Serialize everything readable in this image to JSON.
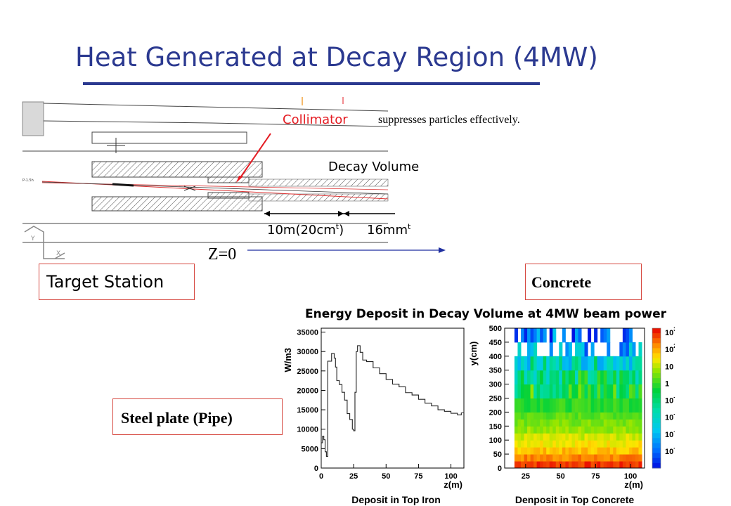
{
  "slide": {
    "title": "Heat Generated at Decay Region (4MW)"
  },
  "diagram": {
    "collimator_label": "Collimator",
    "collimator_note": "suppresses particles effectively.",
    "decay_volume_label": "Decay Volume",
    "dim_left": "10m(20cm",
    "dim_left_sup": "t",
    "dim_left_close": ")",
    "dim_right": "16mm",
    "dim_right_sup": "t",
    "z_label": "Z=0"
  },
  "callouts": {
    "target_station": "Target Station",
    "concrete": "Concrete",
    "steel_plate": "Steel plate (Pipe)"
  },
  "plot": {
    "title": "Energy Deposit in Decay Volume at 4MW beam power",
    "left_caption": "Deposit in Top Iron",
    "right_caption": "Denposit in Top Concrete"
  },
  "chart_data": [
    {
      "type": "line",
      "title": "Deposit in Top Iron",
      "xlabel": "z(m)",
      "ylabel": "W/m3",
      "xlim": [
        0,
        110
      ],
      "ylim": [
        0,
        36000
      ],
      "x_ticks": [
        0,
        25,
        50,
        75,
        100
      ],
      "y_ticks": [
        0,
        5000,
        10000,
        15000,
        20000,
        25000,
        30000,
        35000
      ],
      "x": [
        0,
        1,
        2,
        3,
        4,
        5,
        8,
        10,
        11,
        12,
        14,
        16,
        18,
        20,
        22,
        24,
        25,
        26,
        27,
        28,
        30,
        32,
        35,
        40,
        45,
        50,
        55,
        60,
        65,
        70,
        75,
        80,
        85,
        90,
        95,
        100,
        105,
        108,
        110
      ],
      "y": [
        6500,
        8200,
        7300,
        4200,
        3000,
        27500,
        29500,
        28300,
        26000,
        22500,
        21500,
        19500,
        17500,
        14000,
        12500,
        10000,
        9600,
        19500,
        30000,
        31500,
        29800,
        27800,
        27400,
        25800,
        24300,
        22800,
        21600,
        20900,
        19400,
        18800,
        17700,
        16700,
        16000,
        15000,
        14600,
        14100,
        13700,
        14200,
        14800
      ]
    },
    {
      "type": "heatmap",
      "title": "Denposit in Top Concrete",
      "xlabel": "z(m)",
      "ylabel": "y(cm)",
      "xlim": [
        10,
        110
      ],
      "ylim": [
        0,
        500
      ],
      "x_ticks": [
        25,
        50,
        75,
        100
      ],
      "y_ticks": [
        0,
        50,
        100,
        150,
        200,
        250,
        300,
        350,
        400,
        450,
        500
      ],
      "zscale": "log",
      "z_range": [
        0.0001,
        1000
      ],
      "colorbar_labels": [
        "10^3",
        "10^2",
        "10",
        "1",
        "10^-1",
        "10^-2",
        "10^-3",
        "10^-4"
      ],
      "y_bins": [
        0,
        25,
        50,
        75,
        100,
        125,
        150,
        175,
        200,
        250,
        300,
        350,
        400,
        450
      ],
      "log10_values_by_y": [
        2.8,
        2.3,
        1.9,
        1.6,
        1.3,
        1.0,
        0.8,
        0.6,
        0.3,
        0.0,
        -0.5,
        -1.3,
        -2.3,
        -3.0
      ]
    }
  ],
  "colors": {
    "title": "#2b3990",
    "collimator": "#e41c23",
    "box_border": "#d6473f",
    "arrow": "#1f2fa0"
  }
}
